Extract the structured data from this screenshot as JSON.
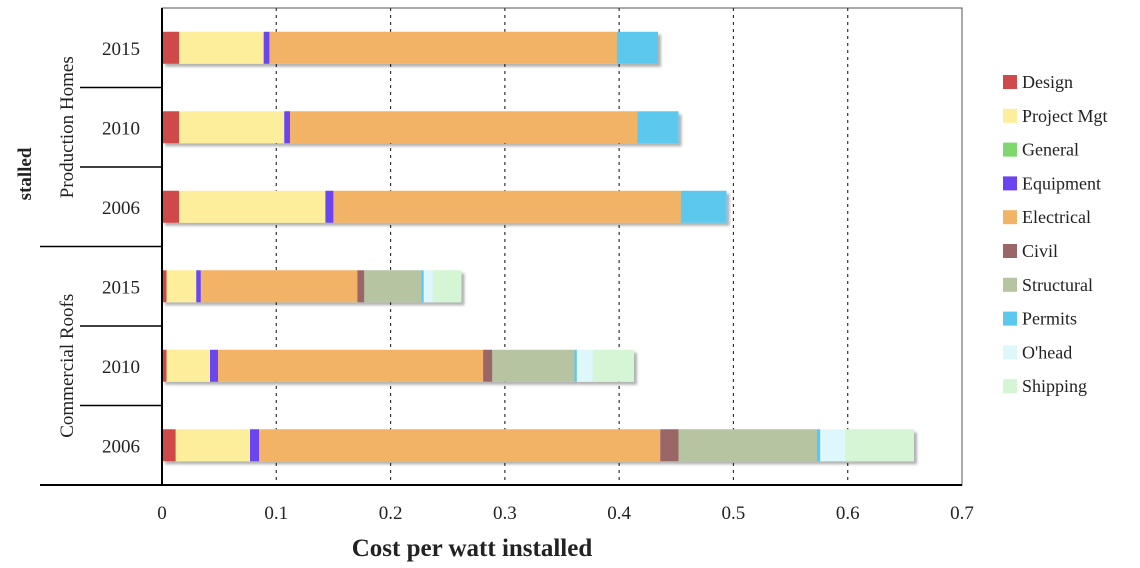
{
  "chart_data": {
    "type": "bar",
    "orientation": "horizontal",
    "stacked": true,
    "xlabel": "Cost per watt installed",
    "ylabel": "stalled",
    "xlim": [
      0,
      0.7
    ],
    "x_ticks": [
      "0",
      "0.1",
      "0.2",
      "0.3",
      "0.4",
      "0.5",
      "0.6",
      "0.7"
    ],
    "grid": "vertical dashed",
    "legend_position": "right",
    "groups": [
      {
        "name": "Production Homes",
        "categories": [
          "2015",
          "2010",
          "2006"
        ]
      },
      {
        "name": "Commercial Roofs",
        "categories": [
          "2015",
          "2010",
          "2006"
        ]
      }
    ],
    "categories": [
      "Production Homes 2015",
      "Production Homes 2010",
      "Production Homes 2006",
      "Commercial Roofs 2015",
      "Commercial Roofs 2010",
      "Commercial Roofs 2006"
    ],
    "series": [
      {
        "name": "Design",
        "color": "#cf4a4a",
        "values": [
          0.015,
          0.015,
          0.015,
          0.004,
          0.004,
          0.012
        ]
      },
      {
        "name": "Project Mgt",
        "color": "#fdee9b",
        "values": [
          0.074,
          0.092,
          0.128,
          0.026,
          0.038,
          0.065
        ]
      },
      {
        "name": "General",
        "color": "#7ed86e",
        "values": [
          0,
          0,
          0,
          0,
          0,
          0
        ]
      },
      {
        "name": "Equipment",
        "color": "#6a44f0",
        "values": [
          0.005,
          0.005,
          0.007,
          0.004,
          0.007,
          0.008
        ]
      },
      {
        "name": "Electrical",
        "color": "#f2b366",
        "values": [
          0.304,
          0.304,
          0.304,
          0.137,
          0.232,
          0.351
        ]
      },
      {
        "name": "Civil",
        "color": "#9b6666",
        "values": [
          0,
          0,
          0,
          0.006,
          0.008,
          0.016
        ]
      },
      {
        "name": "Structural",
        "color": "#b6c4a2",
        "values": [
          0,
          0,
          0,
          0.05,
          0.072,
          0.121
        ]
      },
      {
        "name": "Permits",
        "color": "#5cc8ee",
        "values": [
          0.036,
          0.036,
          0.04,
          0.002,
          0.002,
          0.003
        ]
      },
      {
        "name": "O'head",
        "color": "#def7fa",
        "values": [
          0,
          0,
          0,
          0.008,
          0.014,
          0.022
        ]
      },
      {
        "name": "Shipping",
        "color": "#d4f6d4",
        "values": [
          0,
          0,
          0,
          0.025,
          0.036,
          0.06
        ]
      }
    ]
  }
}
